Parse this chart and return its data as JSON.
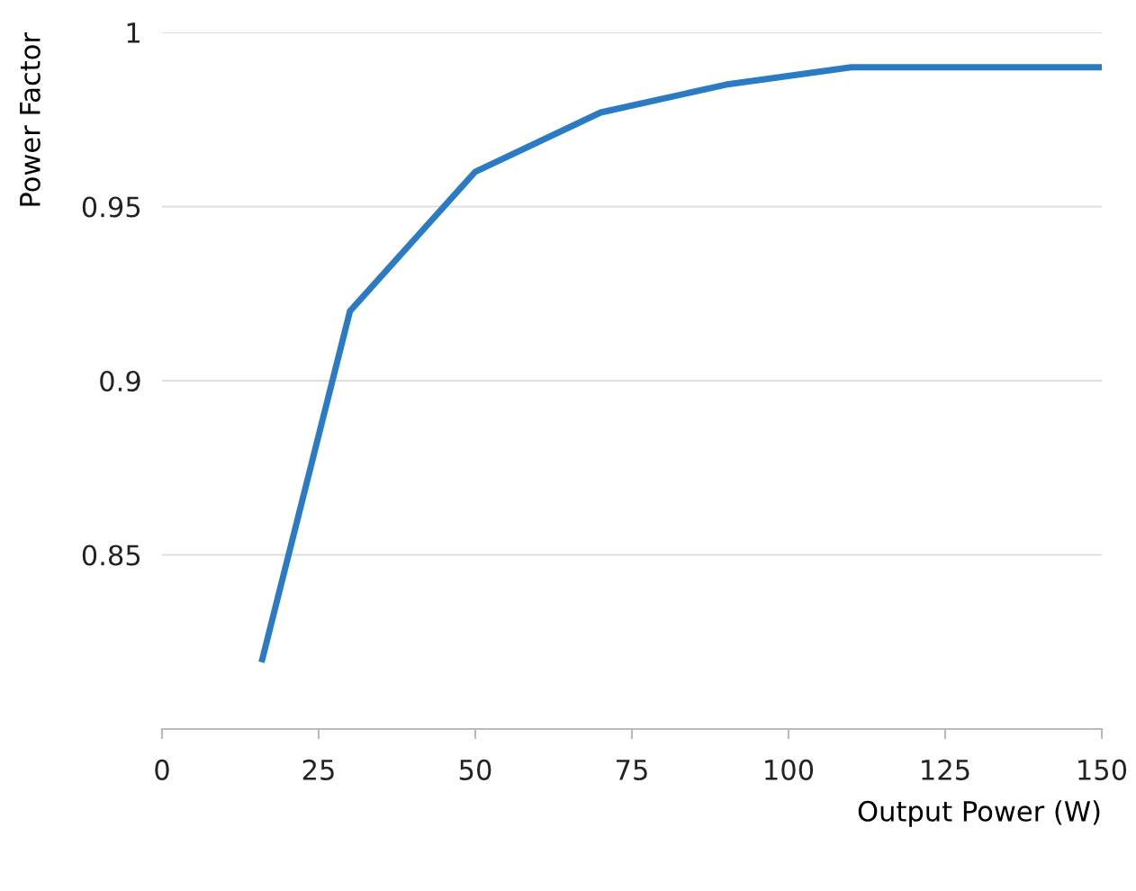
{
  "chart_data": {
    "type": "line",
    "xlabel": "Output Power (W)",
    "ylabel": "Power Factor",
    "x": [
      16,
      30,
      50,
      70,
      90,
      110,
      130,
      150
    ],
    "series": [
      {
        "color": "#2a7bc4",
        "values": [
          0.82,
          0.92,
          0.96,
          0.977,
          0.985,
          0.99,
          0.99,
          0.99
        ]
      }
    ],
    "xlim": [
      0,
      150
    ],
    "xticks": [
      0,
      25,
      50,
      75,
      100,
      125,
      150
    ],
    "ylim": [
      0.8,
      1
    ],
    "yticks": [
      0.85,
      0.9,
      0.95,
      1
    ],
    "grid": "y",
    "marker": "none",
    "line_style": "solid"
  }
}
